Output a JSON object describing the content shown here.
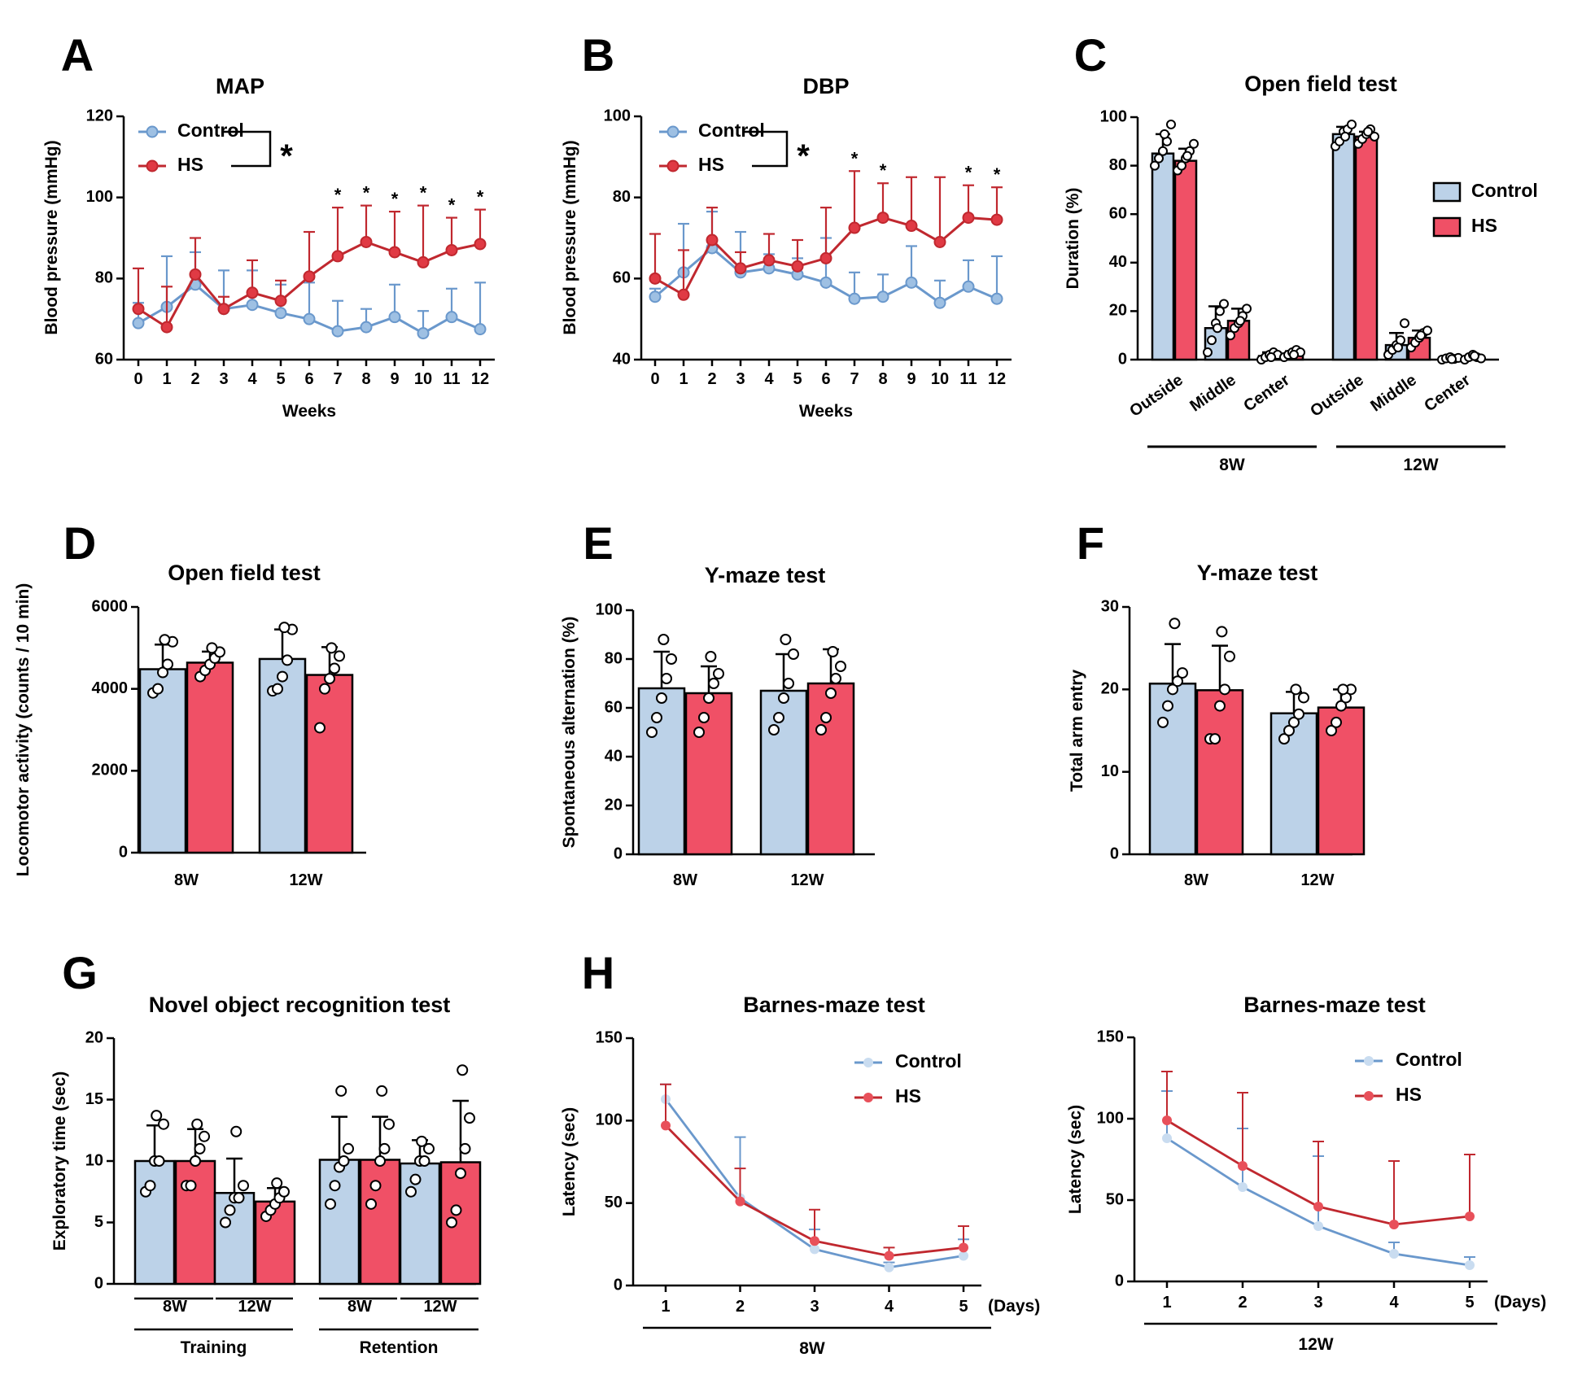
{
  "colors": {
    "control": "#6a98cc",
    "hs": "#c0282f",
    "control_bar": "#bcd2e8",
    "hs_bar": "#f05066"
  },
  "legend": {
    "control": "Control",
    "hs": "HS"
  },
  "chart_data": [
    {
      "id": "A",
      "panel_label": "A",
      "type": "line",
      "title": "MAP",
      "xlabel": "Weeks",
      "ylabel": "Blood pressure (mmHg)",
      "ylim": [
        60,
        120
      ],
      "yticks": [
        60,
        80,
        100,
        120
      ],
      "x": [
        0,
        1,
        2,
        3,
        4,
        5,
        6,
        7,
        8,
        9,
        10,
        11,
        12
      ],
      "series": [
        {
          "name": "Control",
          "values": [
            69,
            73,
            78.5,
            72.5,
            73.5,
            71.5,
            70,
            67,
            68,
            70.5,
            66.5,
            70.5,
            67.5
          ],
          "err": [
            5,
            12.5,
            8,
            9.5,
            8.5,
            7,
            9,
            7.5,
            4.5,
            8,
            5.5,
            7,
            11.5
          ]
        },
        {
          "name": "HS",
          "values": [
            72.5,
            68,
            81,
            72.5,
            76.5,
            74.5,
            80.5,
            85.5,
            89,
            86.5,
            84,
            87,
            88.5
          ],
          "err": [
            10,
            10,
            9,
            3,
            8,
            5,
            11,
            12,
            9,
            10,
            14,
            8,
            8.5
          ]
        }
      ],
      "significance": {
        "marker": "*",
        "x": [
          7,
          8,
          9,
          10,
          11,
          12
        ]
      },
      "group_significance": "*"
    },
    {
      "id": "B",
      "panel_label": "B",
      "type": "line",
      "title": "DBP",
      "xlabel": "Weeks",
      "ylabel": "Blood pressure (mmHg)",
      "ylim": [
        40,
        100
      ],
      "yticks": [
        40,
        60,
        80,
        100
      ],
      "x": [
        0,
        1,
        2,
        3,
        4,
        5,
        6,
        7,
        8,
        9,
        10,
        11,
        12
      ],
      "series": [
        {
          "name": "Control",
          "values": [
            55.5,
            61.5,
            67.5,
            61.5,
            62.5,
            61,
            59,
            55,
            55.5,
            59,
            54,
            58,
            55
          ],
          "err": [
            2,
            12,
            9,
            10,
            3.5,
            4,
            11,
            6.5,
            5.5,
            9,
            5.5,
            6.5,
            10.5
          ]
        },
        {
          "name": "HS",
          "values": [
            60,
            56,
            69.5,
            62.5,
            64.5,
            63,
            65,
            72.5,
            75,
            73,
            69,
            75,
            74.5
          ],
          "err": [
            11,
            11,
            8,
            4,
            6.5,
            6.5,
            12.5,
            14,
            8.5,
            12,
            16,
            8,
            8
          ]
        }
      ],
      "significance": {
        "marker": "*",
        "x": [
          7,
          8,
          11,
          12
        ]
      },
      "group_significance": "*"
    },
    {
      "id": "C",
      "panel_label": "C",
      "type": "bar",
      "title": "Open field test",
      "ylabel": "Duration (%)",
      "ylim": [
        0,
        100
      ],
      "yticks": [
        0,
        20,
        40,
        60,
        80,
        100
      ],
      "categories": [
        "Outside",
        "Middle",
        "Center",
        "Outside",
        "Middle",
        "Center"
      ],
      "groups": [
        "8W",
        "12W"
      ],
      "series": [
        {
          "name": "Control",
          "values": [
            85,
            13,
            1.5,
            93,
            6,
            0.5
          ],
          "err": [
            8,
            9,
            1.5,
            3,
            5,
            0.5
          ],
          "points": [
            [
              80,
              83,
              86,
              90,
              97,
              93
            ],
            [
              3,
              8,
              15,
              20,
              23,
              13
            ],
            [
              0,
              1,
              2,
              3,
              2,
              1
            ],
            [
              88,
              90,
              94,
              95,
              97,
              92
            ],
            [
              2,
              4,
              6,
              8,
              15,
              5
            ],
            [
              0,
              0.5,
              1,
              0.3,
              0.7,
              0.2
            ]
          ]
        },
        {
          "name": "HS",
          "values": [
            82,
            16,
            2.5,
            92,
            9,
            1
          ],
          "err": [
            5,
            5,
            1,
            2,
            3,
            0.5
          ],
          "points": [
            [
              78,
              80,
              83,
              86,
              89,
              84
            ],
            [
              10,
              13,
              15,
              18,
              21,
              16
            ],
            [
              1,
              2,
              3,
              4,
              3,
              2
            ],
            [
              89,
              91,
              93,
              95,
              92,
              94
            ],
            [
              5,
              7,
              9,
              11,
              12,
              10
            ],
            [
              0,
              1,
              2,
              1,
              0.5,
              1.5
            ]
          ]
        }
      ]
    },
    {
      "id": "D",
      "panel_label": "D",
      "type": "bar",
      "title": "Open field test",
      "ylabel": "Locomotor activity (counts / 10 min)",
      "ylim": [
        0,
        6000
      ],
      "yticks": [
        0,
        2000,
        4000,
        6000
      ],
      "categories": [
        "8W",
        "12W"
      ],
      "series": [
        {
          "name": "Control",
          "values": [
            4480,
            4730
          ],
          "err": [
            600,
            720
          ],
          "points": [
            [
              3900,
              4000,
              4400,
              4600,
              5150,
              5200
            ],
            [
              3950,
              4000,
              4300,
              4700,
              5450,
              5500
            ]
          ]
        },
        {
          "name": "HS",
          "values": [
            4640,
            4340
          ],
          "err": [
            270,
            680
          ],
          "points": [
            [
              4300,
              4450,
              4600,
              4750,
              4900,
              5000
            ],
            [
              3050,
              4000,
              4250,
              4500,
              4800,
              5000
            ]
          ]
        }
      ]
    },
    {
      "id": "E",
      "panel_label": "E",
      "type": "bar",
      "title": "Y-maze test",
      "ylabel": "Spontaneous alternation (%)",
      "ylim": [
        0,
        100
      ],
      "yticks": [
        0,
        20,
        40,
        60,
        80,
        100
      ],
      "categories": [
        "8W",
        "12W"
      ],
      "series": [
        {
          "name": "Control",
          "values": [
            68,
            67
          ],
          "err": [
            15,
            15
          ],
          "points": [
            [
              50,
              56,
              64,
              72,
              80,
              88
            ],
            [
              51,
              56,
              64,
              70,
              82,
              88
            ]
          ]
        },
        {
          "name": "HS",
          "values": [
            66,
            70
          ],
          "err": [
            11,
            14
          ],
          "points": [
            [
              50,
              56,
              64,
              70,
              74,
              81
            ],
            [
              51,
              56,
              66,
              72,
              77,
              83
            ]
          ]
        }
      ]
    },
    {
      "id": "F",
      "panel_label": "F",
      "type": "bar",
      "title": "Y-maze test",
      "ylabel": "Total arm entry",
      "ylim": [
        0,
        30
      ],
      "yticks": [
        0,
        10,
        20,
        30
      ],
      "categories": [
        "8W",
        "12W"
      ],
      "series": [
        {
          "name": "Control",
          "values": [
            20.7,
            17.1
          ],
          "err": [
            4.8,
            2.6
          ],
          "points": [
            [
              16,
              18,
              20,
              21,
              22,
              28
            ],
            [
              14,
              15,
              16,
              17,
              19,
              20
            ]
          ]
        },
        {
          "name": "HS",
          "values": [
            19.9,
            17.8
          ],
          "err": [
            5.4,
            2.2
          ],
          "points": [
            [
              14,
              14,
              18,
              20,
              24,
              27
            ],
            [
              15,
              16,
              18,
              19,
              20,
              20
            ]
          ]
        }
      ]
    },
    {
      "id": "G",
      "panel_label": "G",
      "type": "bar",
      "title": "Novel object recognition test",
      "ylabel": "Exploratory time (sec)",
      "ylim": [
        0,
        20
      ],
      "yticks": [
        0,
        5,
        10,
        15,
        20
      ],
      "categories": [
        "8W",
        "12W",
        "8W",
        "12W"
      ],
      "groups": [
        "Training",
        "Retention"
      ],
      "series": [
        {
          "name": "Control",
          "values": [
            10,
            7.4,
            10.1,
            9.8
          ],
          "err": [
            2.9,
            2.8,
            3.5,
            1.9
          ],
          "points": [
            [
              7.5,
              8,
              10,
              10,
              13,
              13.7
            ],
            [
              5,
              6,
              7,
              7,
              8,
              12.4
            ],
            [
              6.5,
              8,
              9.5,
              10,
              11,
              15.7
            ],
            [
              7.5,
              8.5,
              10,
              10,
              11,
              11.6
            ]
          ]
        },
        {
          "name": "HS",
          "values": [
            10,
            6.7,
            10.1,
            9.9
          ],
          "err": [
            2.6,
            1.1,
            3.5,
            5
          ],
          "points": [
            [
              8,
              8,
              10,
              11,
              12,
              13
            ],
            [
              5.5,
              6,
              6.5,
              7,
              7.5,
              8.2
            ],
            [
              6.5,
              8,
              10,
              11,
              13,
              15.7
            ],
            [
              5,
              6,
              9,
              11,
              13.5,
              17.4
            ]
          ]
        }
      ]
    },
    {
      "id": "H1",
      "panel_label": "H",
      "type": "line",
      "title": "Barnes-maze test",
      "xlabel": "(Days)",
      "group_label": "8W",
      "ylabel": "Latency (sec)",
      "ylim": [
        0,
        150
      ],
      "yticks": [
        0,
        50,
        100,
        150
      ],
      "x": [
        1,
        2,
        3,
        4,
        5
      ],
      "series": [
        {
          "name": "Control",
          "values": [
            113,
            53,
            22,
            11,
            18
          ],
          "err": [
            9,
            37,
            12,
            3,
            10
          ]
        },
        {
          "name": "HS",
          "values": [
            97,
            51,
            27,
            18,
            23
          ],
          "err": [
            25,
            20,
            19,
            5,
            13
          ]
        }
      ]
    },
    {
      "id": "H2",
      "type": "line",
      "title": "Barnes-maze test",
      "xlabel": "(Days)",
      "group_label": "12W",
      "ylabel": "Latency (sec)",
      "ylim": [
        0,
        150
      ],
      "yticks": [
        0,
        50,
        100,
        150
      ],
      "x": [
        1,
        2,
        3,
        4,
        5
      ],
      "series": [
        {
          "name": "Control",
          "values": [
            88,
            58,
            34,
            17,
            10
          ],
          "err": [
            29,
            36,
            43,
            7,
            5
          ]
        },
        {
          "name": "HS",
          "values": [
            99,
            71,
            46,
            35,
            40
          ],
          "err": [
            30,
            45,
            40,
            39,
            38
          ]
        }
      ]
    }
  ]
}
